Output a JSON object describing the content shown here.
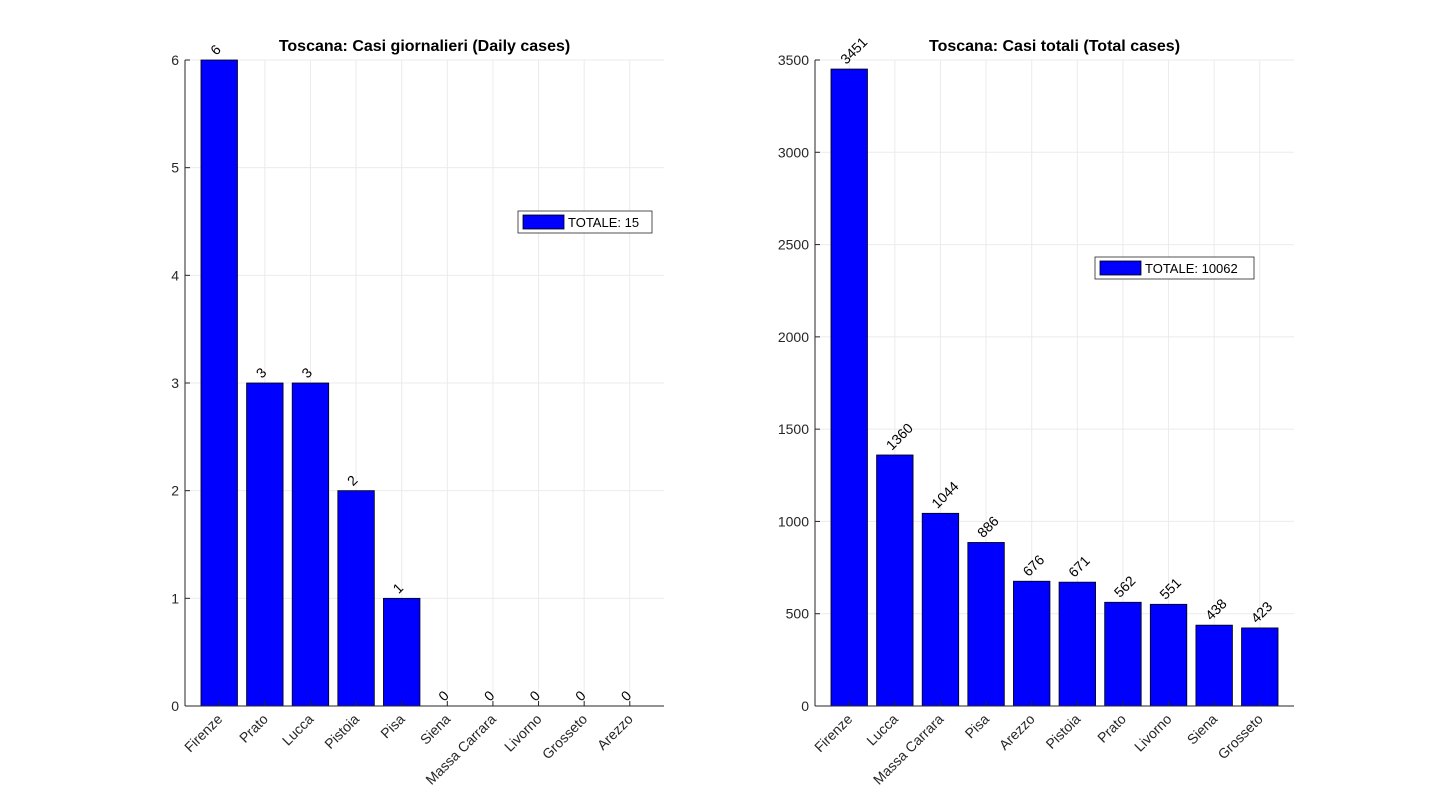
{
  "chart_data": [
    {
      "type": "bar",
      "title": "Toscana: Casi giornalieri (Daily cases)",
      "xlabel": "",
      "ylabel": "",
      "categories": [
        "Firenze",
        "Prato",
        "Lucca",
        "Pistoia",
        "Pisa",
        "Siena",
        "Massa Carrara",
        "Livorno",
        "Grosseto",
        "Arezzo"
      ],
      "values": [
        6,
        3,
        3,
        2,
        1,
        0,
        0,
        0,
        0,
        0
      ],
      "data_labels": [
        "6",
        "3",
        "3",
        "2",
        "1",
        "0",
        "0",
        "0",
        "0",
        "0"
      ],
      "ylim": [
        0,
        6
      ],
      "yticks": [
        0,
        1,
        2,
        3,
        4,
        5,
        6
      ],
      "ytick_labels": [
        "0",
        "1",
        "2",
        "3",
        "4",
        "5",
        "6"
      ],
      "grid": true,
      "legend": {
        "label": "TOTALE: 15",
        "placement": "right"
      },
      "bar_color": "#0000ff"
    },
    {
      "type": "bar",
      "title": "Toscana: Casi totali (Total cases)",
      "xlabel": "",
      "ylabel": "",
      "categories": [
        "Firenze",
        "Lucca",
        "Massa Carrara",
        "Pisa",
        "Arezzo",
        "Pistoia",
        "Prato",
        "Livorno",
        "Siena",
        "Grosseto"
      ],
      "values": [
        3451,
        1360,
        1044,
        886,
        676,
        671,
        562,
        551,
        438,
        423
      ],
      "data_labels": [
        "3451",
        "1360",
        "1044",
        "886",
        "676",
        "671",
        "562",
        "551",
        "438",
        "423"
      ],
      "ylim": [
        0,
        3500
      ],
      "yticks": [
        0,
        500,
        1000,
        1500,
        2000,
        2500,
        3000,
        3500
      ],
      "ytick_labels": [
        "0",
        "500",
        "1000",
        "1500",
        "2000",
        "2500",
        "3000",
        "3500"
      ],
      "grid": true,
      "legend": {
        "label": "TOTALE: 10062",
        "placement": "right"
      },
      "bar_color": "#0000ff"
    }
  ]
}
